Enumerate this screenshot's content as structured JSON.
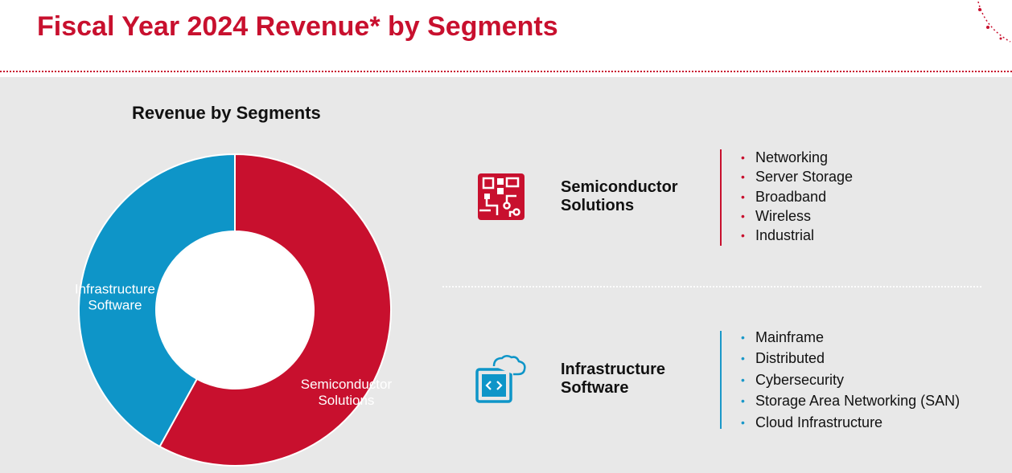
{
  "page": {
    "title": "Fiscal Year 2024 Revenue* by Segments"
  },
  "colors": {
    "brand_red": "#c8102e",
    "brand_blue": "#0e95c8",
    "panel_bg": "#e8e8e8"
  },
  "chart_data": {
    "type": "pie",
    "variant": "donut",
    "title": "Revenue by Segments",
    "categories": [
      "Semiconductor Solutions",
      "Infrastructure Software"
    ],
    "label_lines": [
      [
        "Semiconductor",
        "Solutions"
      ],
      [
        "Infrastructure",
        "Software"
      ]
    ],
    "values": [
      58,
      42
    ],
    "unit": "percent (estimated from slice angles)",
    "colors": [
      "#c8102e",
      "#0e95c8"
    ],
    "legend": "none"
  },
  "segments": [
    {
      "name_lines": [
        "Semiconductor",
        "Solutions"
      ],
      "icon": "circuit-board-icon",
      "bullet_color": "#c8102e",
      "items": [
        "Networking",
        "Server Storage",
        "Broadband",
        "Wireless",
        "Industrial"
      ]
    },
    {
      "name_lines": [
        "Infrastructure",
        "Software"
      ],
      "icon": "cloud-code-icon",
      "bullet_color": "#1a98c9",
      "items": [
        "Mainframe",
        "Distributed",
        "Cybersecurity",
        "Storage Area Networking (SAN)",
        "Cloud Infrastructure"
      ]
    }
  ]
}
